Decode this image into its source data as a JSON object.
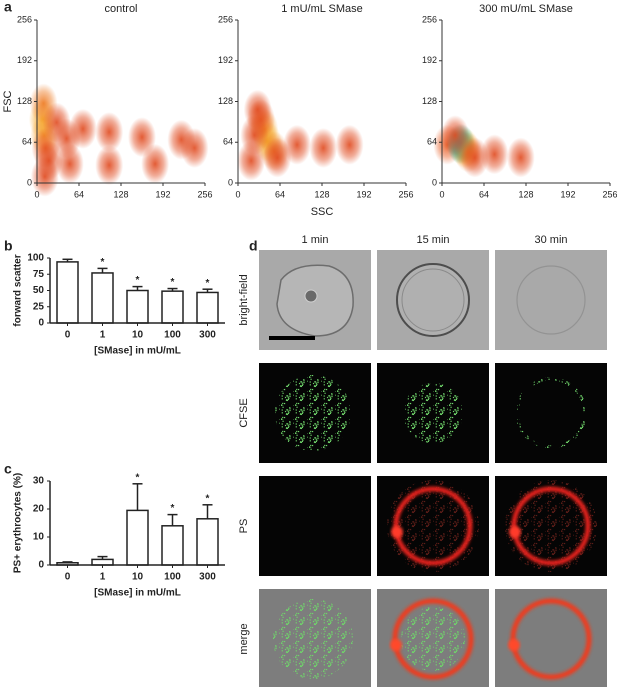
{
  "panel_labels": [
    "a",
    "b",
    "c",
    "d"
  ],
  "chart_data": [
    {
      "type": "scatter",
      "title": "control",
      "y_label": "FSC",
      "x": [
        9,
        11,
        10,
        13,
        18,
        30,
        45,
        70,
        110,
        160,
        220,
        50,
        110,
        180,
        240,
        12
      ],
      "y": [
        100,
        75,
        125,
        55,
        35,
        95,
        70,
        85,
        80,
        72,
        68,
        30,
        28,
        30,
        55,
        10
      ],
      "colors": [
        "#f5a623",
        "#f39a20",
        "#ee7a22",
        "#e85a20",
        "#e04a1f",
        "#e04a1f",
        "#e04a1f",
        "#e04a1f",
        "#e04a1f",
        "#e04a1f",
        "#e04a1f",
        "#e04a1f",
        "#e04a1f",
        "#e04a1f",
        "#e04a1f",
        "#e04a1f"
      ],
      "xlim": [
        0,
        256
      ],
      "ylim": [
        0,
        256
      ],
      "xticks": [
        0,
        64,
        128,
        192,
        256
      ],
      "yticks": [
        0,
        64,
        128,
        192,
        256
      ]
    },
    {
      "type": "scatter",
      "title": "1 mU/mL SMase",
      "x_label": "SSC",
      "x": [
        45,
        40,
        35,
        55,
        25,
        60,
        30,
        90,
        130,
        170,
        20
      ],
      "y": [
        65,
        85,
        100,
        50,
        75,
        40,
        115,
        60,
        55,
        60,
        35
      ],
      "colors": [
        "#f5b823",
        "#f39a20",
        "#e85a20",
        "#ee7a22",
        "#e04a1f",
        "#e04a1f",
        "#e04a1f",
        "#e04a1f",
        "#e04a1f",
        "#e04a1f",
        "#e04a1f"
      ],
      "xlim": [
        0,
        256
      ],
      "ylim": [
        0,
        256
      ],
      "xticks": [
        0,
        64,
        128,
        192,
        256
      ],
      "yticks": [
        0,
        64,
        128,
        192,
        256
      ]
    },
    {
      "type": "scatter",
      "title": "300 mU/mL SMase",
      "x": [
        8,
        35,
        30,
        28,
        40,
        20,
        50,
        80,
        120
      ],
      "y": [
        60,
        55,
        60,
        62,
        48,
        75,
        40,
        45,
        40
      ],
      "colors": [
        "#e85a20",
        "#f5b823",
        "#6cc04a",
        "#1a8fb0",
        "#ee7a22",
        "#e04a1f",
        "#e04a1f",
        "#e04a1f",
        "#e04a1f"
      ],
      "xlim": [
        0,
        256
      ],
      "ylim": [
        0,
        256
      ],
      "xticks": [
        0,
        64,
        128,
        192,
        256
      ],
      "yticks": [
        0,
        64,
        128,
        192,
        256
      ]
    },
    {
      "type": "bar",
      "categories": [
        "0",
        "1",
        "10",
        "100",
        "300"
      ],
      "values": [
        94,
        77,
        50,
        49,
        47
      ],
      "errors": [
        4,
        7,
        6,
        4,
        5
      ],
      "significance": [
        null,
        "*",
        "*",
        "*",
        "*"
      ],
      "color": "#ffffff",
      "ylim": [
        0,
        100
      ],
      "yticks": [
        0,
        25,
        50,
        75,
        100
      ],
      "y_label": "forward scatter",
      "x_label": "[SMase] in mU/mL"
    },
    {
      "type": "bar",
      "categories": [
        "0",
        "1",
        "10",
        "100",
        "300"
      ],
      "values": [
        0.8,
        2,
        19.5,
        14,
        16.5
      ],
      "errors": [
        0.3,
        1,
        9.5,
        4,
        5
      ],
      "significance": [
        null,
        null,
        "*",
        "*",
        "*"
      ],
      "color": "#ffffff",
      "ylim": [
        0,
        30
      ],
      "yticks": [
        0,
        10,
        20,
        30
      ],
      "y_label": "PS+ erythrocytes (%)",
      "x_label": "[SMase] in mU/mL"
    }
  ],
  "micrographs": {
    "columns": [
      "1 min",
      "15 min",
      "30 min"
    ],
    "rows": [
      "bright-field",
      "CFSE",
      "PS",
      "merge"
    ]
  }
}
